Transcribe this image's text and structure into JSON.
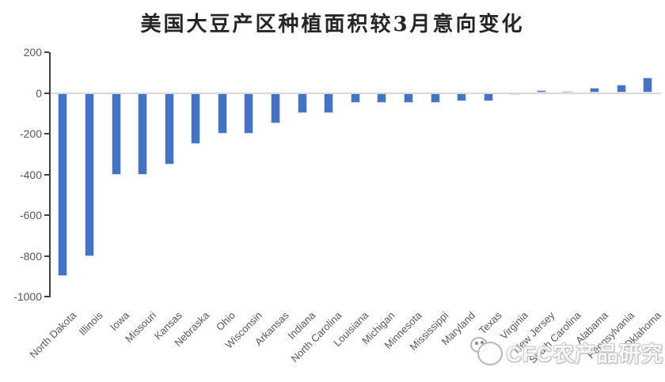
{
  "title": "美国大豆产区种植面积较3月意向变化",
  "watermark": {
    "text": "CFC农产品研究",
    "logo": "panda-logo-icon"
  },
  "chart_data": {
    "type": "bar",
    "title": "美国大豆产区种植面积较3月意向变化",
    "categories": [
      "North Dakota",
      "Illinois",
      "Iowa",
      "Missouri",
      "Kansas",
      "Nebraska",
      "Ohio",
      "Wisconsin",
      "Arkansas",
      "Indiana",
      "North Carolina",
      "Louisiana",
      "Michigan",
      "Minnesota",
      "Mississippi",
      "Maryland",
      "Texas",
      "Virginia",
      "New Jersey",
      "South Carolina",
      "Alabama",
      "Pennsylvania",
      "Oklahoma"
    ],
    "values": [
      -900,
      -800,
      -400,
      -400,
      -350,
      -250,
      -200,
      -200,
      -150,
      -100,
      -100,
      -50,
      -50,
      -50,
      -50,
      -40,
      -40,
      -10,
      15,
      10,
      25,
      40,
      75
    ],
    "xlabel": "",
    "ylabel": "",
    "ylim": [
      -1000,
      200
    ],
    "yticks": [
      200,
      0,
      -200,
      -400,
      -600,
      -800,
      -1000
    ],
    "grid": false,
    "legend": false,
    "bar_color": "#4472C4",
    "axis_color": "#404040",
    "tick_label_color": "#595959",
    "zero_line_color": "#D9D9D9"
  }
}
